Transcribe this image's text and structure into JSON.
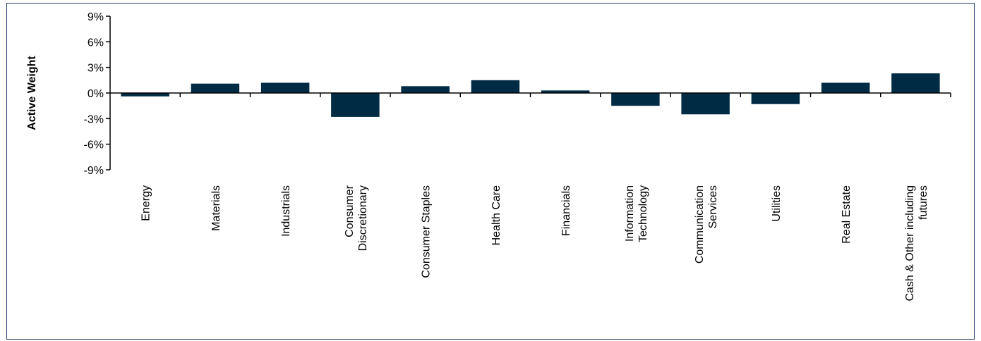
{
  "chart_data": {
    "type": "bar",
    "title": "",
    "xlabel": "",
    "ylabel": "Active Weight",
    "ylim": [
      -9,
      9
    ],
    "yticks": [
      9,
      6,
      3,
      0,
      -3,
      -6,
      -9
    ],
    "ytick_labels": [
      "9%",
      "6%",
      "3%",
      "0%",
      "-3%",
      "-6%",
      "-9%"
    ],
    "grid": false,
    "legend": "none",
    "bar_color": "#002b45",
    "categories": [
      "Energy",
      "Materials",
      "Industrials",
      "Consumer Discretionary",
      "Consumer Staples",
      "Health Care",
      "Financials",
      "Information Technology",
      "Communication Services",
      "Utilities",
      "Real Estate",
      "Cash & Other including futures"
    ],
    "category_label_lines": [
      [
        "Energy"
      ],
      [
        "Materials"
      ],
      [
        "Industrials"
      ],
      [
        "Consumer",
        "Discretionary"
      ],
      [
        "Consumer Staples"
      ],
      [
        "Health Care"
      ],
      [
        "Financials"
      ],
      [
        "Information",
        "Technology"
      ],
      [
        "Communication",
        "Services"
      ],
      [
        "Utilities"
      ],
      [
        "Real Estate"
      ],
      [
        "Cash & Other including",
        "futures"
      ]
    ],
    "values": [
      -0.4,
      1.1,
      1.2,
      -2.8,
      0.8,
      1.5,
      0.3,
      -1.5,
      -2.5,
      -1.3,
      1.2,
      2.3
    ]
  }
}
